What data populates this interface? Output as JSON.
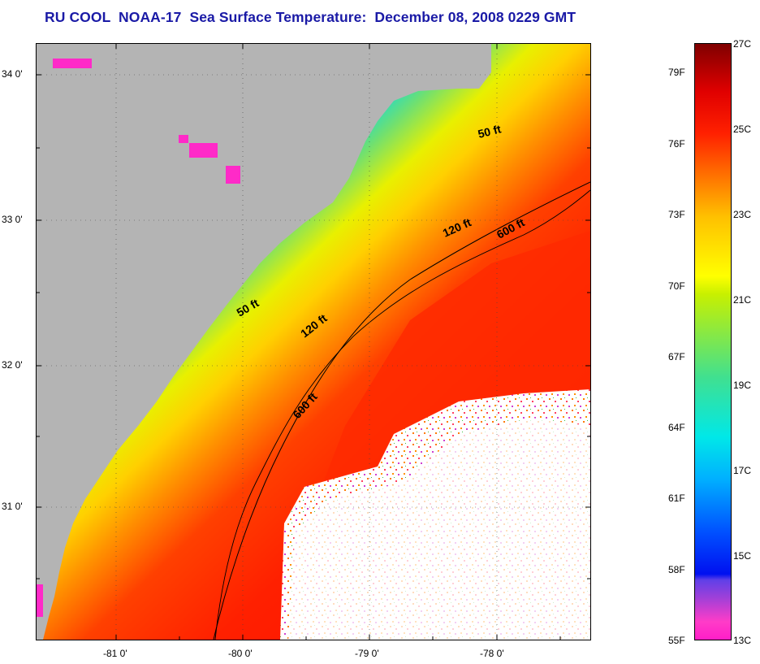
{
  "title": "RU COOL  NOAA-17  Sea Surface Temperature:  December 08, 2008 0229 GMT",
  "map": {
    "lat_labels": [
      "34 0'",
      "33 0'",
      "32 0'",
      "31 0'"
    ],
    "lon_labels": [
      "-81 0'",
      "-80 0'",
      "-79 0'",
      "-78 0'"
    ],
    "isobath_labels": [
      "50 ft",
      "50 ft",
      "120 ft",
      "120 ft",
      "600 ft",
      "600 ft"
    ]
  },
  "colorbar": {
    "fahrenheit": [
      "79F",
      "76F",
      "73F",
      "70F",
      "67F",
      "64F",
      "61F",
      "58F",
      "55F"
    ],
    "celsius": [
      "27C",
      "25C",
      "23C",
      "21C",
      "19C",
      "17C",
      "15C",
      "13C"
    ]
  },
  "colors": {
    "land": "#b4b4b4",
    "cloud": "#ffffff",
    "title": "#1a1aa6"
  }
}
